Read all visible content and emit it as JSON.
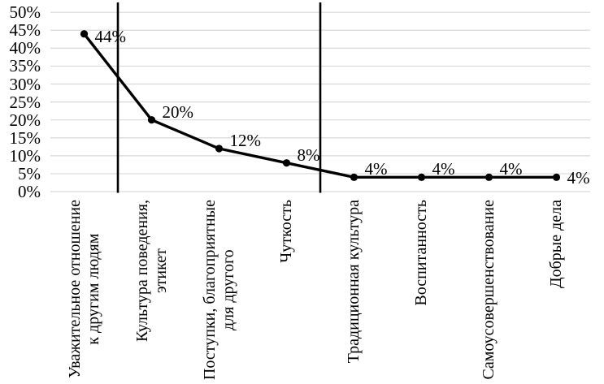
{
  "chart": {
    "background_color": "#ffffff",
    "line_color": "#000000",
    "marker_color": "#000000",
    "grid_color": "#d9d9d9",
    "separator_color": "#000000",
    "text_color": "#000000"
  },
  "chart_data": {
    "type": "line",
    "title": "",
    "xlabel": "",
    "ylabel": "",
    "categories": [
      "Уважительное отношение\nк другим людям",
      "Культура поведения,\nэтикет",
      "Поступки, благоприятные\nдля другого",
      "Чуткость",
      "Традиционная культура",
      "Воспитанность",
      "Самоусовершенствование",
      "Добрые дела"
    ],
    "values": [
      44,
      20,
      12,
      8,
      4,
      4,
      4,
      4
    ],
    "data_labels": [
      "44%",
      "20%",
      "12%",
      "8%",
      "4%",
      "4%",
      "4%",
      "4%"
    ],
    "ylim": [
      0,
      50
    ],
    "ytick_step": 5,
    "ytick_labels": [
      "0%",
      "5%",
      "10%",
      "15%",
      "20%",
      "25%",
      "30%",
      "35%",
      "40%",
      "45%",
      "50%"
    ],
    "grid": "horizontal-only",
    "legend": "none",
    "marker": "filled-circle",
    "separators_after_category": [
      1,
      4
    ]
  }
}
